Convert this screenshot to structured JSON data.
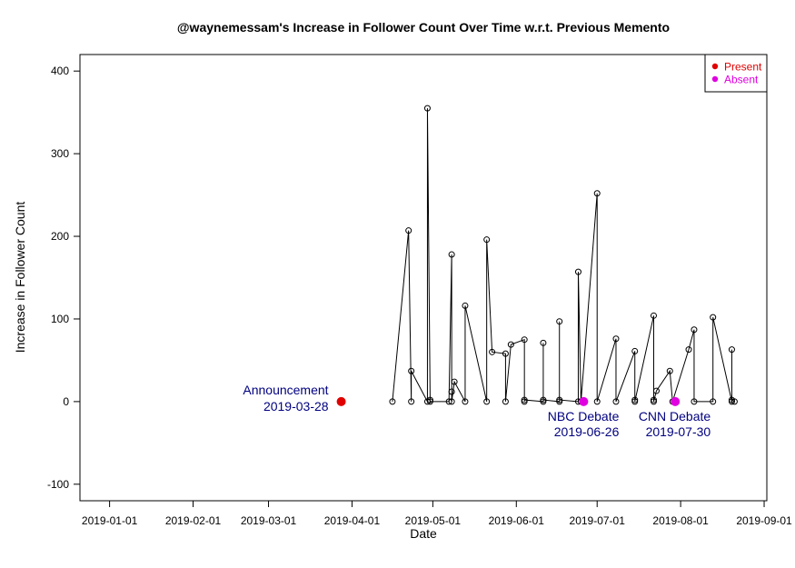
{
  "chart_data": {
    "type": "scatter",
    "title": "@waynemessam's Increase in Follower Count Over Time w.r.t. Previous Memento",
    "xlabel": "Date",
    "ylabel": "Increase in Follower Count",
    "xlim": [
      "2018-12-21",
      "2019-09-02"
    ],
    "ylim": [
      -120,
      420
    ],
    "x_ticks": [
      "2019-01-01",
      "2019-02-01",
      "2019-03-01",
      "2019-04-01",
      "2019-05-01",
      "2019-06-01",
      "2019-07-01",
      "2019-08-01",
      "2019-09-01"
    ],
    "y_ticks": [
      -100,
      0,
      100,
      200,
      300,
      400
    ],
    "grid": false,
    "legend": {
      "position": "top-right",
      "entries": [
        {
          "label": "Present",
          "color": "#e00000"
        },
        {
          "label": "Absent",
          "color": "#e000e0"
        }
      ]
    },
    "series": [
      {
        "type": "line-with-open-circles",
        "color": "#000000",
        "points": [
          [
            "2019-04-16",
            0
          ],
          [
            "2019-04-22",
            207
          ],
          [
            "2019-04-23",
            0
          ],
          [
            "2019-04-23",
            37
          ],
          [
            "2019-04-29",
            0
          ],
          [
            "2019-04-29",
            355
          ],
          [
            "2019-04-30",
            2
          ],
          [
            "2019-04-30",
            0
          ],
          [
            "2019-05-07",
            0
          ],
          [
            "2019-05-08",
            178
          ],
          [
            "2019-05-08",
            12
          ],
          [
            "2019-05-08",
            0
          ],
          [
            "2019-05-09",
            24
          ],
          [
            "2019-05-13",
            0
          ],
          [
            "2019-05-13",
            116
          ],
          [
            "2019-05-21",
            0
          ],
          [
            "2019-05-21",
            196
          ],
          [
            "2019-05-23",
            60
          ],
          [
            "2019-05-28",
            58
          ],
          [
            "2019-05-28",
            0
          ],
          [
            "2019-05-30",
            69
          ],
          [
            "2019-06-04",
            75
          ],
          [
            "2019-06-04",
            0
          ],
          [
            "2019-06-04",
            2
          ],
          [
            "2019-06-11",
            0
          ],
          [
            "2019-06-11",
            71
          ],
          [
            "2019-06-11",
            2
          ],
          [
            "2019-06-17",
            0
          ],
          [
            "2019-06-17",
            97
          ],
          [
            "2019-06-17",
            2
          ],
          [
            "2019-06-24",
            0
          ],
          [
            "2019-06-24",
            157
          ],
          [
            "2019-06-25",
            0
          ],
          [
            "2019-07-01",
            252
          ],
          [
            "2019-07-01",
            0
          ],
          [
            "2019-07-08",
            76
          ],
          [
            "2019-07-08",
            0
          ],
          [
            "2019-07-15",
            61
          ],
          [
            "2019-07-15",
            2
          ],
          [
            "2019-07-15",
            0
          ],
          [
            "2019-07-22",
            104
          ],
          [
            "2019-07-22",
            2
          ],
          [
            "2019-07-22",
            0
          ],
          [
            "2019-07-23",
            13
          ],
          [
            "2019-07-28",
            37
          ],
          [
            "2019-07-29",
            0
          ],
          [
            "2019-08-04",
            63
          ],
          [
            "2019-08-06",
            87
          ],
          [
            "2019-08-06",
            0
          ],
          [
            "2019-08-13",
            0
          ],
          [
            "2019-08-13",
            102
          ],
          [
            "2019-08-20",
            0
          ],
          [
            "2019-08-20",
            63
          ],
          [
            "2019-08-20",
            2
          ],
          [
            "2019-08-21",
            0
          ]
        ]
      }
    ],
    "markers": [
      {
        "name": "Present",
        "date": "2019-03-28",
        "value": 0,
        "color": "#e00000"
      },
      {
        "name": "Absent",
        "date": "2019-06-26",
        "value": 0,
        "color": "#e000e0"
      },
      {
        "name": "Absent",
        "date": "2019-07-30",
        "value": 0,
        "color": "#e000e0"
      }
    ],
    "annotations": [
      {
        "line1": "Announcement",
        "line2": "2019-03-28",
        "date": "2019-03-28",
        "anchor": "end",
        "side": "above-left",
        "color": "#000080"
      },
      {
        "line1": "NBC Debate",
        "line2": "2019-06-26",
        "date": "2019-06-26",
        "anchor": "end",
        "side": "below",
        "color": "#000080"
      },
      {
        "line1": "CNN Debate",
        "line2": "2019-07-30",
        "date": "2019-07-30",
        "anchor": "end",
        "side": "below",
        "color": "#000080"
      }
    ]
  }
}
